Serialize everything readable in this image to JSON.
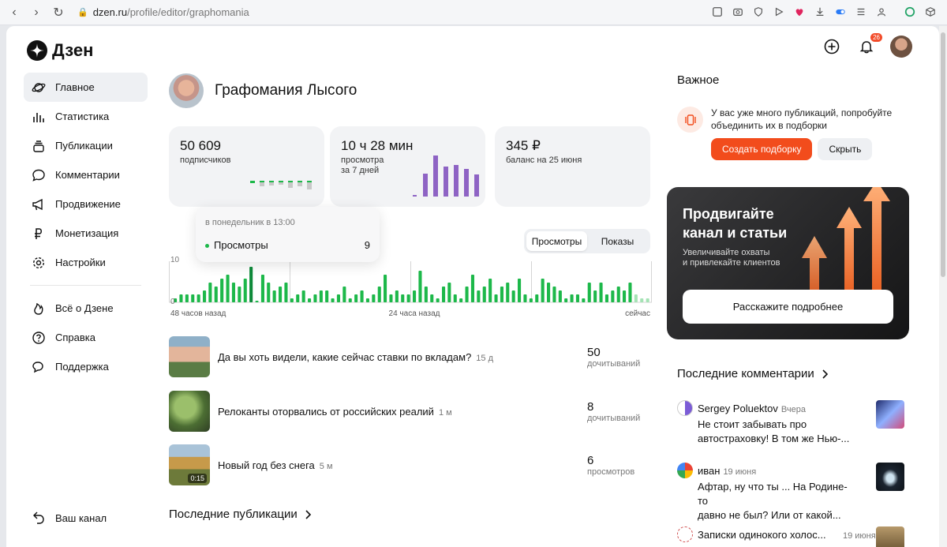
{
  "browser": {
    "url_host": "dzen.ru",
    "url_path": "/profile/editor/graphomania"
  },
  "logo": {
    "text": "Дзен"
  },
  "sidebar": {
    "items": [
      {
        "label": "Главное",
        "icon": "planet-icon"
      },
      {
        "label": "Статистика",
        "icon": "bars-icon"
      },
      {
        "label": "Публикации",
        "icon": "stack-icon"
      },
      {
        "label": "Комментарии",
        "icon": "comment-icon"
      },
      {
        "label": "Продвижение",
        "icon": "megaphone-icon"
      },
      {
        "label": "Монетизация",
        "icon": "ruble-icon"
      },
      {
        "label": "Настройки",
        "icon": "gear-icon"
      }
    ],
    "items2": [
      {
        "label": "Всё о Дзене",
        "icon": "flame-icon"
      },
      {
        "label": "Справка",
        "icon": "help-icon"
      },
      {
        "label": "Поддержка",
        "icon": "chat-icon"
      }
    ],
    "channel_label": "Ваш канал"
  },
  "header": {
    "notifications_count": "26"
  },
  "profile": {
    "name": "Графомания Лысого"
  },
  "cards": [
    {
      "value": "50 609",
      "label": "подписчиков"
    },
    {
      "value": "10 ч 28 мин",
      "label": "просмотра",
      "label2": "за 7 дней"
    },
    {
      "value": "345 ₽",
      "label": "баланс на 25 июня"
    }
  ],
  "tooltip": {
    "time": "в понедельник в 13:00",
    "series": "Просмотры",
    "value": "9"
  },
  "toggle": {
    "views": "Просмотры",
    "shows": "Показы"
  },
  "chart_data": {
    "type": "bar",
    "ymax_label": "10",
    "ymin_label": "0",
    "x_labels": [
      "48 часов назад",
      "24 часа назад",
      "сейчас"
    ],
    "values": [
      1,
      2,
      2,
      2,
      2,
      3,
      5,
      4,
      6,
      7,
      5,
      4,
      6,
      9,
      0,
      7,
      5,
      3,
      4,
      5,
      1,
      2,
      3,
      1,
      2,
      3,
      3,
      1,
      2,
      4,
      1,
      2,
      3,
      1,
      2,
      4,
      7,
      2,
      3,
      2,
      2,
      3,
      8,
      4,
      2,
      1,
      4,
      5,
      2,
      1,
      4,
      7,
      3,
      4,
      6,
      2,
      4,
      5,
      3,
      6,
      2,
      1,
      2,
      6,
      5,
      4,
      3,
      1,
      2,
      2,
      1,
      5,
      3,
      5,
      2,
      3,
      4,
      3,
      5,
      2,
      1,
      1
    ],
    "highlight_index": 13
  },
  "publications": [
    {
      "title": "Да вы хоть видели, какие сейчас ставки по вкладам?",
      "age": "15 д",
      "count": "50",
      "metric": "дочитываний"
    },
    {
      "title": "Релоканты оторвались от российских реалий",
      "age": "1 м",
      "count": "8",
      "metric": "дочитываний"
    },
    {
      "title": "Новый год без снега",
      "age": "5 м",
      "count": "6",
      "metric": "просмотров",
      "duration": "0:15"
    }
  ],
  "latest_pubs_title": "Последние публикации",
  "important": {
    "title": "Важное",
    "notice": "У вас уже много публикаций, попробуйте объединить их в подборки",
    "create_btn": "Создать подборку",
    "hide_btn": "Скрыть"
  },
  "promo": {
    "title1": "Продвигайте",
    "title2": "канал и статьи",
    "sub1": "Увеличивайте охваты",
    "sub2": "и привлекайте клиентов",
    "button": "Расскажите подробнее"
  },
  "comments": {
    "title": "Последние комментарии",
    "items": [
      {
        "author": "Sergey Poluektov",
        "date": "Вчера",
        "text1": "Не стоит забывать про",
        "text2": "автостраховку! В том же Нью-..."
      },
      {
        "author": "иван",
        "date": "19 июня",
        "text1": "Афтар, ну что ты ... На Родине-то",
        "text2": "давно не был? Или от какой..."
      },
      {
        "author": "Записки одинокого холос...",
        "date": "19 июня"
      }
    ]
  },
  "colors": {
    "accent": "#f24c1c",
    "bar": "#1db84a",
    "bar_light": "#a5e3b5",
    "purple": "#8e63c4"
  }
}
